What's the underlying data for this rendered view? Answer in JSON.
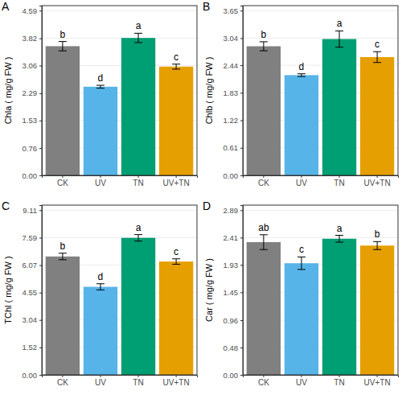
{
  "chart_data": [
    {
      "type": "bar",
      "title": "A",
      "y_label": "Chla ( mg/g FW )",
      "categories": [
        "CK",
        "UV",
        "TN",
        "UV+TN"
      ],
      "values": [
        3.6,
        2.47,
        3.83,
        3.03
      ],
      "errors": [
        0.13,
        0.04,
        0.13,
        0.07
      ],
      "annotations": [
        "b",
        "d",
        "a",
        "c"
      ],
      "colors": [
        "#808080",
        "#56B4E9",
        "#009E73",
        "#E69F00"
      ],
      "ylim": [
        0,
        4.73
      ],
      "yticks": [
        {
          "value": 0,
          "label": "0.00"
        },
        0.76,
        1.53,
        2.29,
        3.06,
        3.82,
        4.59
      ],
      "grid": true
    },
    {
      "type": "bar",
      "title": "B",
      "y_label": "Chlb ( mg/g FW )",
      "categories": [
        "CK",
        "UV",
        "TN",
        "UV+TN"
      ],
      "values": [
        2.86,
        2.22,
        3.02,
        2.62
      ],
      "errors": [
        0.1,
        0.03,
        0.18,
        0.12
      ],
      "annotations": [
        "b",
        "d",
        "a",
        "c"
      ],
      "colors": [
        "#808080",
        "#56B4E9",
        "#009E73",
        "#E69F00"
      ],
      "ylim": [
        0,
        3.76
      ],
      "yticks": [
        {
          "value": 0,
          "label": "0.00"
        },
        0.61,
        1.22,
        1.83,
        2.44,
        3.04,
        3.65
      ],
      "grid": true
    },
    {
      "type": "bar",
      "title": "C",
      "y_label": "TChl ( mg/g FW )",
      "categories": [
        "CK",
        "UV",
        "TN",
        "UV+TN"
      ],
      "values": [
        6.55,
        4.87,
        7.58,
        6.27
      ],
      "errors": [
        0.18,
        0.17,
        0.18,
        0.15
      ],
      "annotations": [
        "b",
        "d",
        "a",
        "c"
      ],
      "colors": [
        "#808080",
        "#56B4E9",
        "#009E73",
        "#E69F00"
      ],
      "ylim": [
        0,
        9.39
      ],
      "yticks": [
        {
          "value": 0,
          "label": "0.00"
        },
        1.52,
        3.04,
        4.55,
        6.07,
        7.59,
        9.11
      ],
      "grid": true
    },
    {
      "type": "bar",
      "title": "D",
      "y_label": "Car ( mg/g FW )",
      "categories": [
        "CK",
        "UV",
        "TN",
        "UV+TN"
      ],
      "values": [
        2.33,
        1.96,
        2.39,
        2.27
      ],
      "errors": [
        0.13,
        0.11,
        0.06,
        0.07
      ],
      "annotations": [
        "ab",
        "c",
        "a",
        "b"
      ],
      "colors": [
        "#808080",
        "#56B4E9",
        "#009E73",
        "#E69F00"
      ],
      "ylim": [
        0,
        2.98
      ],
      "yticks": [
        {
          "value": 0,
          "label": "0.00"
        },
        0.48,
        0.96,
        1.45,
        1.93,
        2.41,
        2.89
      ],
      "grid": true
    }
  ]
}
